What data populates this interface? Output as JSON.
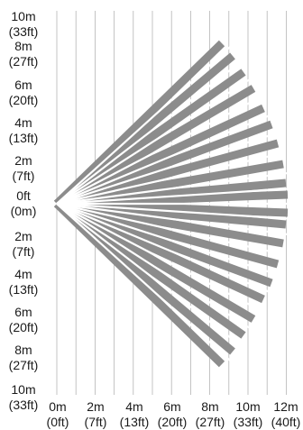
{
  "diagram": {
    "beam_color": "#8c8c8c",
    "grid_color": "#b5b5b5",
    "text_color": "#1a1a1a",
    "origin": {
      "x_m": 0,
      "y_m": 0
    },
    "beam_count": 22
  },
  "y_axis": {
    "labels": [
      {
        "line1": "10m",
        "line2": "(33ft)"
      },
      {
        "line1": "8m",
        "line2": "(27ft)"
      },
      {
        "line1": "6m",
        "line2": "(20ft)"
      },
      {
        "line1": "4m",
        "line2": "(13ft)"
      },
      {
        "line1": "2m",
        "line2": "(7ft)"
      },
      {
        "line1": "0ft",
        "line2": "(0m)"
      },
      {
        "line1": "2m",
        "line2": "(7ft)"
      },
      {
        "line1": "4m",
        "line2": "(13ft)"
      },
      {
        "line1": "6m",
        "line2": "(20ft)"
      },
      {
        "line1": "8m",
        "line2": "(27ft)"
      },
      {
        "line1": "10m",
        "line2": "(33ft)"
      }
    ]
  },
  "x_axis": {
    "labels": [
      {
        "line1": "0m",
        "line2": "(0ft)"
      },
      {
        "line1": "2m",
        "line2": "(7ft)"
      },
      {
        "line1": "4m",
        "line2": "(13ft)"
      },
      {
        "line1": "6m",
        "line2": "(20ft)"
      },
      {
        "line1": "8m",
        "line2": "(27ft)"
      },
      {
        "line1": "10m",
        "line2": "(33ft)"
      },
      {
        "line1": "12m",
        "line2": "(40ft)"
      }
    ]
  }
}
